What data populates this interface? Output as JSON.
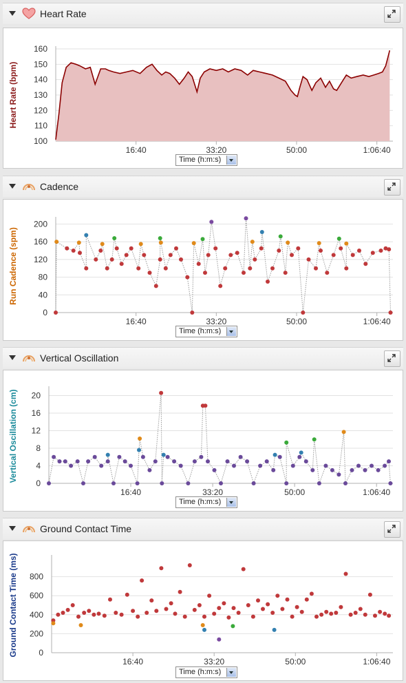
{
  "time_selector": {
    "label": "Time (h:m:s)"
  },
  "panels": [
    {
      "key": "hr",
      "title": "Heart Rate",
      "icon": "heart-icon"
    },
    {
      "key": "cad",
      "title": "Cadence",
      "icon": "runner-icon"
    },
    {
      "key": "vo",
      "title": "Vertical Oscillation",
      "icon": "runner-icon"
    },
    {
      "key": "gct",
      "title": "Ground Contact Time",
      "icon": "runner-icon"
    }
  ],
  "chart_data": [
    {
      "key": "hr",
      "type": "area",
      "ylabel": "Heart Rate (bpm)",
      "ylabel_color": "#8b1a1a",
      "ylim": [
        100,
        160
      ],
      "yticks": [
        100,
        110,
        120,
        130,
        140,
        150,
        160
      ],
      "xlim": [
        0,
        4200
      ],
      "xticks": [
        1000,
        2000,
        3000,
        4000
      ],
      "xtick_labels": [
        "16:40",
        "33:20",
        "50:00",
        "1:06:40"
      ],
      "series": [
        {
          "color": "#8b0000",
          "fill": "#e8c0c0",
          "x": [
            0,
            40,
            80,
            130,
            190,
            250,
            300,
            370,
            430,
            490,
            560,
            620,
            660,
            720,
            800,
            880,
            960,
            1050,
            1130,
            1200,
            1260,
            1320,
            1370,
            1420,
            1480,
            1540,
            1600,
            1650,
            1700,
            1760,
            1800,
            1850,
            1920,
            2000,
            2080,
            2150,
            2230,
            2310,
            2390,
            2460,
            2540,
            2620,
            2700,
            2780,
            2860,
            2930,
            2980,
            3010,
            3040,
            3080,
            3130,
            3190,
            3240,
            3300,
            3360,
            3410,
            3460,
            3500,
            3560,
            3620,
            3680,
            3750,
            3830,
            3900,
            3960,
            4020,
            4070,
            4110,
            4140,
            4160
          ],
          "y": [
            101,
            118,
            138,
            148,
            151,
            150,
            149,
            147,
            148,
            137,
            147,
            147,
            146,
            145,
            144,
            145,
            146,
            144,
            148,
            150,
            146,
            143,
            145,
            144,
            141,
            137,
            141,
            145,
            142,
            132,
            141,
            145,
            147,
            146,
            147,
            145,
            147,
            146,
            143,
            146,
            145,
            144,
            143,
            141,
            139,
            133,
            130,
            129,
            135,
            142,
            140,
            133,
            138,
            141,
            135,
            139,
            134,
            133,
            138,
            143,
            141,
            142,
            143,
            142,
            143,
            144,
            145,
            149,
            155,
            159
          ]
        }
      ]
    },
    {
      "key": "cad",
      "type": "scatter",
      "ylabel": "Run Cadence (spm)",
      "ylabel_color": "#cc6600",
      "ylim": [
        0,
        210
      ],
      "yticks": [
        0,
        40,
        80,
        120,
        160,
        200
      ],
      "xlim": [
        0,
        4200
      ],
      "xticks": [
        1000,
        2000,
        3000,
        4000
      ],
      "xtick_labels": [
        "16:40",
        "33:20",
        "50:00",
        "1:06:40"
      ],
      "connector": "#9a9a9a",
      "series": [
        {
          "name": "",
          "color": "#c0393b",
          "x": [
            0,
            140,
            220,
            300,
            380,
            500,
            560,
            640,
            700,
            760,
            820,
            880,
            940,
            1030,
            1100,
            1170,
            1250,
            1300,
            1370,
            1430,
            1500,
            1560,
            1640,
            1700,
            1780,
            1860,
            1900,
            1990,
            2050,
            2110,
            2180,
            2260,
            2340,
            2420,
            2480,
            2560,
            2640,
            2700,
            2780,
            2860,
            2940,
            3020,
            3080,
            3150,
            3240,
            3300,
            3380,
            3460,
            3550,
            3620,
            3700,
            3780,
            3860,
            3950,
            4050,
            4110,
            4150,
            4170
          ],
          "y": [
            0,
            145,
            140,
            135,
            100,
            120,
            140,
            100,
            120,
            145,
            110,
            130,
            145,
            100,
            130,
            90,
            60,
            120,
            100,
            130,
            145,
            120,
            80,
            0,
            110,
            90,
            130,
            145,
            60,
            100,
            130,
            135,
            90,
            100,
            120,
            145,
            70,
            100,
            140,
            90,
            130,
            145,
            0,
            120,
            100,
            140,
            90,
            130,
            145,
            100,
            130,
            140,
            110,
            135,
            140,
            145,
            143,
            0
          ]
        },
        {
          "name": "",
          "color": "#e08a1a",
          "x": [
            10,
            290,
            580,
            1060,
            1310,
            1720,
            2450,
            2890,
            3280,
            3620
          ],
          "y": [
            160,
            158,
            155,
            155,
            158,
            157,
            160,
            158,
            157,
            156
          ]
        },
        {
          "name": "",
          "color": "#3aaa3a",
          "x": [
            730,
            1300,
            1830,
            2800,
            3530
          ],
          "y": [
            168,
            168,
            166,
            172,
            167
          ]
        },
        {
          "name": "",
          "color": "#3380b0",
          "x": [
            380,
            2570
          ],
          "y": [
            175,
            182
          ]
        },
        {
          "name": "",
          "color": "#7a4aa0",
          "x": [
            1940,
            2370
          ],
          "y": [
            205,
            213
          ]
        }
      ]
    },
    {
      "key": "vo",
      "type": "scatter",
      "ylabel": "Vertical Oscillation (cm)",
      "ylabel_color": "#1a8a9a",
      "ylim": [
        0,
        21.5
      ],
      "yticks": [
        0,
        4,
        8,
        12,
        16,
        20
      ],
      "xlim": [
        0,
        4200
      ],
      "xticks": [
        1000,
        2000,
        3000,
        4000
      ],
      "xtick_labels": [
        "16:40",
        "33:20",
        "50:00",
        "1:06:40"
      ],
      "connector": "#9a9a9a",
      "series": [
        {
          "name": "",
          "color": "#6a4a9a",
          "x": [
            0,
            60,
            130,
            200,
            270,
            350,
            420,
            480,
            560,
            640,
            720,
            790,
            860,
            930,
            1000,
            1080,
            1150,
            1230,
            1300,
            1380,
            1450,
            1530,
            1610,
            1700,
            1780,
            1860,
            1940,
            2020,
            2100,
            2180,
            2260,
            2340,
            2420,
            2500,
            2580,
            2660,
            2740,
            2820,
            2900,
            2980,
            3060,
            3140,
            3220,
            3300,
            3380,
            3460,
            3540,
            3620,
            3700,
            3780,
            3860,
            3940,
            4020,
            4100,
            4150,
            4170
          ],
          "y": [
            0,
            6,
            5,
            5,
            4,
            5,
            0,
            5,
            6,
            4,
            5,
            0,
            6,
            5,
            4,
            0,
            6,
            3,
            5,
            0,
            6,
            5,
            4,
            0,
            5,
            6,
            5,
            3,
            0,
            5,
            4,
            6,
            5,
            0,
            4,
            5,
            3,
            6,
            0,
            4,
            6,
            5,
            3,
            0,
            4,
            3,
            2,
            0,
            3,
            4,
            3,
            4,
            3,
            4,
            5,
            0
          ]
        },
        {
          "name": "",
          "color": "#3aaa3a",
          "x": [
            2900,
            3240
          ],
          "y": [
            9.3,
            10
          ]
        },
        {
          "name": "",
          "color": "#e08a1a",
          "x": [
            1110,
            3600
          ],
          "y": [
            10.2,
            11.7
          ]
        },
        {
          "name": "",
          "color": "#3380b0",
          "x": [
            720,
            1100,
            1400,
            2760,
            3080
          ],
          "y": [
            6.5,
            7.6,
            6.5,
            6.5,
            7
          ]
        },
        {
          "name": "",
          "color": "#c0393b",
          "x": [
            1370,
            1880,
            1910
          ],
          "y": [
            20.6,
            17.7,
            17.7
          ]
        }
      ]
    },
    {
      "key": "gct",
      "type": "scatter",
      "ylabel": "Ground Contact Time (ms)",
      "ylabel_color": "#1a3a8a",
      "ylim": [
        0,
        1000
      ],
      "yticks": [
        0,
        200,
        400,
        600,
        800
      ],
      "xlim": [
        0,
        4200
      ],
      "xticks": [
        1000,
        2000,
        3000,
        4000
      ],
      "xtick_labels": [
        "16:40",
        "33:20",
        "50:00",
        "1:06:40"
      ],
      "connector": "",
      "series": [
        {
          "name": "",
          "color": "#c0393b",
          "x": [
            20,
            80,
            140,
            200,
            260,
            330,
            400,
            460,
            520,
            580,
            650,
            720,
            790,
            860,
            930,
            1000,
            1060,
            1110,
            1170,
            1230,
            1290,
            1350,
            1410,
            1470,
            1520,
            1580,
            1640,
            1700,
            1760,
            1820,
            1880,
            1940,
            2000,
            2060,
            2120,
            2180,
            2240,
            2300,
            2360,
            2420,
            2480,
            2540,
            2600,
            2660,
            2720,
            2780,
            2840,
            2900,
            2960,
            3020,
            3080,
            3140,
            3200,
            3260,
            3320,
            3380,
            3440,
            3500,
            3560,
            3620,
            3680,
            3740,
            3800,
            3860,
            3920,
            3980,
            4040,
            4100,
            4150
          ],
          "y": [
            340,
            400,
            420,
            450,
            500,
            380,
            420,
            440,
            400,
            410,
            390,
            560,
            420,
            400,
            610,
            440,
            380,
            760,
            420,
            550,
            440,
            890,
            460,
            520,
            410,
            640,
            380,
            920,
            450,
            500,
            380,
            600,
            410,
            470,
            520,
            370,
            470,
            420,
            880,
            500,
            380,
            550,
            460,
            510,
            420,
            600,
            460,
            560,
            380,
            480,
            430,
            560,
            620,
            380,
            400,
            430,
            410,
            420,
            480,
            830,
            400,
            420,
            460,
            400,
            610,
            390,
            430,
            410,
            390
          ]
        },
        {
          "name": "",
          "color": "#e08a1a",
          "x": [
            20,
            360,
            1860
          ],
          "y": [
            310,
            290,
            290
          ]
        },
        {
          "name": "",
          "color": "#3aaa3a",
          "x": [
            2230
          ],
          "y": [
            280
          ]
        },
        {
          "name": "",
          "color": "#3380b0",
          "x": [
            1880,
            2740
          ],
          "y": [
            240,
            240
          ]
        },
        {
          "name": "",
          "color": "#7a4aa0",
          "x": [
            2060
          ],
          "y": [
            140
          ]
        }
      ]
    }
  ]
}
